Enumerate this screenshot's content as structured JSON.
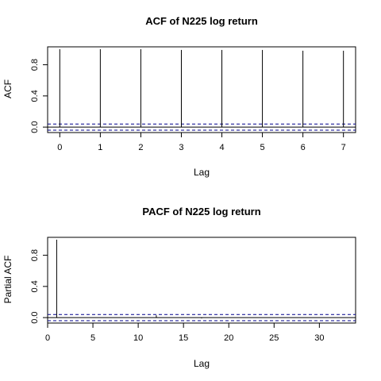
{
  "chart_data": [
    {
      "type": "bar",
      "title": "ACF of N225 log return",
      "xlabel": "Lag",
      "ylabel": "ACF",
      "xlim": [
        -0.3,
        7.3
      ],
      "ylim": [
        -0.07,
        1.03
      ],
      "xticks": [
        0,
        1,
        2,
        3,
        4,
        5,
        6,
        7
      ],
      "yticks": [
        0.0,
        0.4,
        0.8
      ],
      "ytick_labels": [
        "0.0",
        "0.4",
        "0.8"
      ],
      "zero_line": 0,
      "confidence_band": [
        -0.04,
        0.04
      ],
      "series": [
        {
          "x": [
            0,
            1,
            2,
            3,
            4,
            5,
            6,
            7
          ],
          "values": [
            1.0,
            1.0,
            1.0,
            0.99,
            0.99,
            0.99,
            0.98,
            0.98
          ]
        }
      ],
      "grid": false
    },
    {
      "type": "bar",
      "title": "PACF of N225 log return",
      "xlabel": "Lag",
      "ylabel": "Partial ACF",
      "xlim": [
        0,
        34
      ],
      "ylim": [
        -0.07,
        1.03
      ],
      "xticks": [
        0,
        5,
        10,
        15,
        20,
        25,
        30
      ],
      "yticks": [
        0.0,
        0.4,
        0.8
      ],
      "ytick_labels": [
        "0.0",
        "0.4",
        "0.8"
      ],
      "zero_line": 0,
      "confidence_band": [
        -0.04,
        0.04
      ],
      "series": [
        {
          "x": [
            1,
            2,
            3,
            4,
            5,
            6,
            7,
            8,
            9,
            10,
            11,
            12,
            13,
            14,
            15,
            16,
            17,
            18,
            19,
            20,
            21,
            22,
            23,
            24,
            25,
            26,
            27,
            28,
            29,
            30,
            31,
            32,
            33
          ],
          "values": [
            1.0,
            0.0,
            0.0,
            0.0,
            0.0,
            0.0,
            0.0,
            0.0,
            0.0,
            0.0,
            0.0,
            0.03,
            0.0,
            0.0,
            0.0,
            0.0,
            -0.01,
            0.0,
            0.0,
            0.0,
            0.0,
            0.0,
            0.0,
            0.0,
            0.0,
            0.0,
            0.0,
            0.0,
            0.0,
            0.0,
            0.0,
            0.0,
            0.0
          ]
        }
      ],
      "grid": false
    }
  ]
}
